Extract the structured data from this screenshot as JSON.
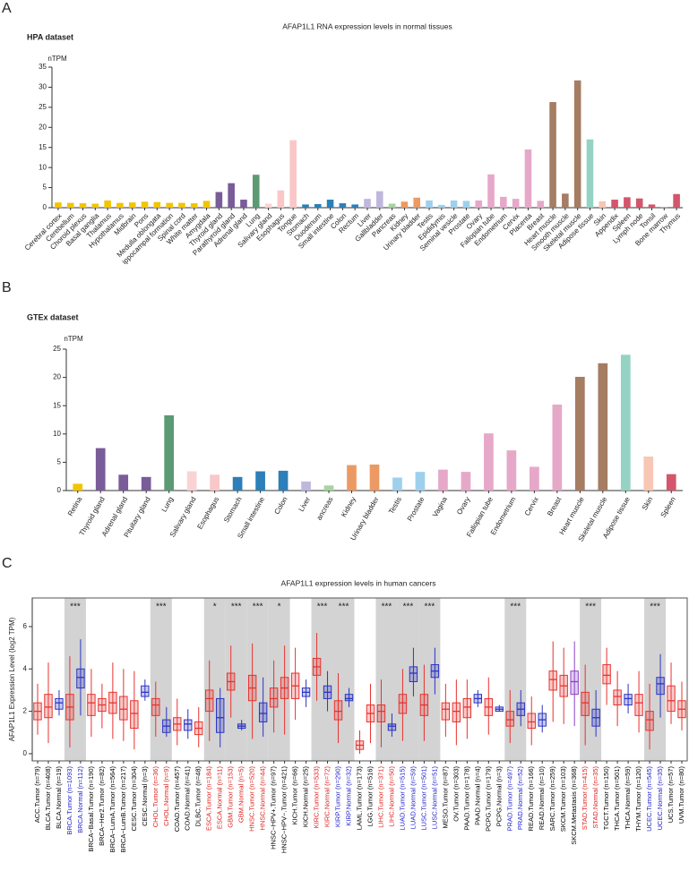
{
  "chart_data": [
    {
      "type": "bar",
      "panel": "A",
      "subtitle": "HPA dataset",
      "title": "AFAP1L1 RNA expression levels in normal tissues",
      "y_label": "nTPM",
      "categories": [
        "Cerebral cortex",
        "Cerebellum",
        "Choroid plexus",
        "Basal ganglia",
        "Thalamus",
        "Hypothalamus",
        "Midbrain",
        "Pons",
        "Medulla oblongata",
        "ippocampal formation",
        "Spinal cord",
        "White matter",
        "Amygdala",
        "Thyroid gland",
        "Parathyroid gland",
        "Adrenal gland",
        "Lung",
        "Salivary gland",
        "Esophagus",
        "Tongue",
        "Stomach",
        "Duodenum",
        "Small intestine",
        "Colon",
        "Rectum",
        "Liver",
        "Gallbladder",
        "Pancreas",
        "Kidney",
        "Urinary bladder",
        "Testis",
        "Epididymis",
        "Seminal vesicle",
        "Prostate",
        "Ovary",
        "Fallopian tube",
        "Endometrium",
        "Cervix",
        "Placenta",
        "Breast",
        "Heart muscle",
        "Smooth muscle",
        "Skeletal muscle",
        "Adipose tissue",
        "Skin",
        "Appendix",
        "Spleen",
        "Lymph node",
        "Tonsil",
        "Bone marrow",
        "Thymus"
      ],
      "values": [
        1.3,
        1.2,
        1.1,
        1.0,
        1.8,
        1.2,
        1.3,
        1.5,
        1.4,
        1.2,
        1.2,
        1.1,
        1.7,
        3.9,
        6.1,
        2.0,
        8.2,
        1.0,
        4.3,
        16.8,
        0.8,
        0.9,
        2.0,
        1.1,
        0.8,
        2.2,
        4.1,
        1.0,
        1.5,
        2.5,
        1.8,
        0.7,
        1.8,
        1.7,
        1.8,
        8.3,
        2.7,
        2.2,
        14.5,
        1.7,
        26.3,
        3.5,
        31.7,
        17.0,
        1.6,
        2.0,
        2.6,
        2.3,
        0.8,
        0.1,
        3.4
      ],
      "colors": [
        "#f2c500",
        "#f2c500",
        "#f2c500",
        "#f2c500",
        "#f2c500",
        "#f2c500",
        "#f2c500",
        "#f2c500",
        "#f2c500",
        "#f2c500",
        "#f2c500",
        "#f2c500",
        "#f2c500",
        "#7a5c99",
        "#7a5c99",
        "#7a5c99",
        "#5b9a72",
        "#f9d3d3",
        "#f9c7c7",
        "#f9c7c7",
        "#2c7fb8",
        "#2c7fb8",
        "#2c7fb8",
        "#2c7fb8",
        "#2c7fb8",
        "#c0b8dc",
        "#c0b8dc",
        "#a6d49f",
        "#ec9a63",
        "#ec9a63",
        "#9ed0ee",
        "#9ed0ee",
        "#9ed0ee",
        "#9ed0ee",
        "#e6a8c9",
        "#e6a8c9",
        "#e6a8c9",
        "#e6a8c9",
        "#e6a8c9",
        "#e6a8c9",
        "#a57d62",
        "#a57d62",
        "#a57d62",
        "#94d3c3",
        "#f7c6b4",
        "#d4566c",
        "#d4566c",
        "#d4566c",
        "#d4566c",
        "#d4566c",
        "#d4566c"
      ],
      "ylim": [
        0,
        35
      ],
      "yticks": [
        0,
        5,
        10,
        15,
        20,
        25,
        30,
        35
      ]
    },
    {
      "type": "bar",
      "panel": "B",
      "subtitle": "GTEx dataset",
      "y_label": "nTPM",
      "categories": [
        "Retina",
        "Thyroid gland",
        "Adrenal gland",
        "Pituitary gland",
        "Lung",
        "Salivary gland",
        "Esophagus",
        "Stomach",
        "Small intestine",
        "Colon",
        "Liver",
        "ancreas",
        "Kidney",
        "Urinary bladder",
        "Testis",
        "Prostate",
        "Vagina",
        "Ovary",
        "Fallopian tube",
        "Endometrium",
        "Cervix",
        "Breast",
        "Heart muscle",
        "Skeletal muscle",
        "Adipose tissue",
        "Skin",
        "Spleen"
      ],
      "values": [
        1.2,
        7.5,
        2.8,
        2.4,
        13.3,
        3.4,
        2.8,
        2.4,
        3.4,
        3.5,
        1.6,
        0.9,
        4.5,
        4.6,
        2.3,
        3.3,
        3.7,
        3.3,
        10.1,
        7.1,
        4.2,
        15.2,
        20.1,
        22.5,
        24.0,
        6.0,
        2.9
      ],
      "colors": [
        "#f2c500",
        "#7a5c99",
        "#7a5c99",
        "#7a5c99",
        "#5b9a72",
        "#f9d3d3",
        "#f9c7c7",
        "#2c7fb8",
        "#2c7fb8",
        "#2c7fb8",
        "#c0b8dc",
        "#a6d49f",
        "#ec9a63",
        "#ec9a63",
        "#9ed0ee",
        "#9ed0ee",
        "#e6a8c9",
        "#e6a8c9",
        "#e6a8c9",
        "#e6a8c9",
        "#e6a8c9",
        "#e6a8c9",
        "#a57d62",
        "#a57d62",
        "#94d3c3",
        "#f7c6b4",
        "#d4566c"
      ],
      "ylim": [
        0,
        25
      ],
      "yticks": [
        0,
        5,
        10,
        15,
        20,
        25
      ]
    },
    {
      "type": "box",
      "panel": "C",
      "title": "AFAP1L1 expression levels in human cancers",
      "y_label": "AFAP1L1 Expression Level (log2 TPM)",
      "categories": [
        "ACC.Tumor (n=79)",
        "BLCA.Tumor (n=408)",
        "BLCA.Normal (n=19)",
        "BRCA.Tumor (n=1093)",
        "BRCA.Normal (n=112)",
        "BRCA−Basal.Tumor (n=190)",
        "BRCA−Her2.Tumor (n=82)",
        "BRCA−LumA.Tumor (n=564)",
        "BRCA−LumB.Tumor (n=217)",
        "CESC.Tumor (n=304)",
        "CESC.Normal (n=3)",
        "CHOL.Tumor (n=36)",
        "CHOL.Normal (n=9)",
        "COAD.Tumor (n=457)",
        "COAD.Normal (n=41)",
        "DLBC.Tumor (n=48)",
        "ESCA.Tumor (n=184)",
        "ESCA.Normal (n=11)",
        "GBM.Tumor (n=153)",
        "GBM.Normal (n=5)",
        "HNSC.Tumor (n=520)",
        "HNSC.Normal (n=44)",
        "HNSC−HPV+.Tumor (n=97)",
        "HNSC−HPV−.Tumor (n=421)",
        "KICH.Tumor (n=66)",
        "KICH.Normal (n=25)",
        "KIRC.Tumor (n=533)",
        "KIRC.Normal (n=72)",
        "KIRP.Tumor (n=290)",
        "KIRP.Normal (n=32)",
        "LAML.Tumor (n=173)",
        "LGG.Tumor (n=516)",
        "LIHC.Tumor (n=371)",
        "LIHC.Normal (n=50)",
        "LUAD.Tumor (n=515)",
        "LUAD.Normal (n=59)",
        "LUSC.Tumor (n=501)",
        "LUSC.Normal (n=51)",
        "MESO.Tumor (n=87)",
        "OV.Tumor (n=303)",
        "PAAD.Tumor (n=178)",
        "PAAD.Normal (n=4)",
        "PCPG.Tumor (n=179)",
        "PCPG.Normal (n=3)",
        "PRAD.Tumor (n=497)",
        "PRAD.Normal (n=52)",
        "READ.Tumor (n=166)",
        "READ.Normal (n=10)",
        "SARC.Tumor (n=259)",
        "SKCM.Tumor (n=103)",
        "SKCM.Metastasis (n=368)",
        "STAD.Tumor (n=415)",
        "STAD.Normal (n=35)",
        "TGCT.Tumor (n=150)",
        "THCA.Tumor (n=501)",
        "THCA.Normal (n=59)",
        "THYM.Tumor (n=120)",
        "UCEC.Tumor (n=545)",
        "UCEC.Normal (n=35)",
        "UCS.Tumor (n=57)",
        "UVM.Tumor (n=80)"
      ],
      "values": [
        [
          0.9,
          1.6,
          2.0,
          2.4,
          3.3
        ],
        [
          0.5,
          1.7,
          2.2,
          2.8,
          4.3
        ],
        [
          1.8,
          2.1,
          2.4,
          2.6,
          3.0
        ],
        [
          0.3,
          1.6,
          2.2,
          2.8,
          4.6
        ],
        [
          1.8,
          3.1,
          3.6,
          4.0,
          5.4
        ],
        [
          0.8,
          1.8,
          2.4,
          2.8,
          4.0
        ],
        [
          1.2,
          2.0,
          2.3,
          2.6,
          3.3
        ],
        [
          0.7,
          1.9,
          2.4,
          2.9,
          4.3
        ],
        [
          0.6,
          1.6,
          2.1,
          2.7,
          4.0
        ],
        [
          0.2,
          1.2,
          1.9,
          2.5,
          3.9
        ],
        [
          2.5,
          2.7,
          2.9,
          3.2,
          3.5
        ],
        [
          0.8,
          1.8,
          2.3,
          2.6,
          3.4
        ],
        [
          0.8,
          1.0,
          1.3,
          1.6,
          2.2
        ],
        [
          0.4,
          1.1,
          1.4,
          1.7,
          2.6
        ],
        [
          0.7,
          1.1,
          1.4,
          1.6,
          2.1
        ],
        [
          0.3,
          0.9,
          1.2,
          1.5,
          2.2
        ],
        [
          0.6,
          2.0,
          2.6,
          3.0,
          4.4
        ],
        [
          0.3,
          1.0,
          1.7,
          2.6,
          3.1
        ],
        [
          1.7,
          3.0,
          3.4,
          3.8,
          5.1
        ],
        [
          1.1,
          1.2,
          1.3,
          1.4,
          1.6
        ],
        [
          0.7,
          2.5,
          3.1,
          3.7,
          5.2
        ],
        [
          0.8,
          1.5,
          1.9,
          2.4,
          3.6
        ],
        [
          1.0,
          2.2,
          2.6,
          3.1,
          4.4
        ],
        [
          0.9,
          2.6,
          3.1,
          3.6,
          5.1
        ],
        [
          1.6,
          2.6,
          3.2,
          3.8,
          5.0
        ],
        [
          2.2,
          2.7,
          2.9,
          3.1,
          3.5
        ],
        [
          2.5,
          3.7,
          4.1,
          4.5,
          5.7
        ],
        [
          2.0,
          2.6,
          2.9,
          3.2,
          3.9
        ],
        [
          0.5,
          1.6,
          2.0,
          2.5,
          3.8
        ],
        [
          2.2,
          2.5,
          2.6,
          2.8,
          3.1
        ],
        [
          0,
          0.2,
          0.4,
          0.6,
          1.1
        ],
        [
          0.5,
          1.5,
          1.9,
          2.3,
          3.3
        ],
        [
          0.3,
          1.5,
          2.0,
          2.3,
          3.5
        ],
        [
          0.8,
          1.1,
          1.3,
          1.4,
          1.9
        ],
        [
          0.6,
          1.9,
          2.4,
          2.8,
          4.0
        ],
        [
          2.7,
          3.4,
          3.8,
          4.1,
          5.0
        ],
        [
          0.6,
          1.8,
          2.3,
          2.8,
          4.2
        ],
        [
          2.8,
          3.6,
          3.9,
          4.2,
          5.0
        ],
        [
          0.8,
          1.6,
          2.1,
          2.4,
          3.3
        ],
        [
          0.4,
          1.5,
          2.0,
          2.4,
          3.5
        ],
        [
          0.7,
          1.7,
          2.2,
          2.6,
          3.5
        ],
        [
          2.2,
          2.4,
          2.6,
          2.8,
          3.0
        ],
        [
          0.9,
          1.8,
          2.2,
          2.6,
          3.6
        ],
        [
          2.0,
          2.0,
          2.1,
          2.2,
          2.3
        ],
        [
          0.5,
          1.3,
          1.6,
          2.0,
          3.0
        ],
        [
          1.3,
          1.8,
          2.1,
          2.4,
          3.0
        ],
        [
          0.4,
          1.2,
          1.5,
          1.9,
          2.7
        ],
        [
          1.0,
          1.3,
          1.6,
          1.9,
          2.3
        ],
        [
          1.5,
          3.0,
          3.5,
          3.9,
          5.3
        ],
        [
          1.4,
          2.7,
          3.2,
          3.7,
          5.0
        ],
        [
          1.3,
          2.8,
          3.4,
          3.9,
          5.3
        ],
        [
          0.4,
          1.8,
          2.4,
          2.9,
          4.2
        ],
        [
          0.8,
          1.3,
          1.7,
          2.1,
          3.0
        ],
        [
          2.3,
          3.3,
          3.7,
          4.2,
          5.0
        ],
        [
          1.3,
          2.3,
          2.7,
          3.0,
          3.9
        ],
        [
          1.9,
          2.3,
          2.6,
          2.8,
          3.3
        ],
        [
          1.0,
          1.8,
          2.4,
          2.8,
          3.9
        ],
        [
          0.2,
          1.1,
          1.6,
          2.0,
          3.3
        ],
        [
          1.7,
          2.8,
          3.3,
          3.6,
          4.7
        ],
        [
          1.4,
          2.0,
          2.5,
          3.2,
          4.3
        ],
        [
          1.1,
          1.7,
          2.1,
          2.5,
          3.4
        ]
      ],
      "label_colors": [
        "#000",
        "#000",
        "#000",
        "#2222cc",
        "#2222cc",
        "#000",
        "#000",
        "#000",
        "#000",
        "#000",
        "#000",
        "#e0201c",
        "#e0201c",
        "#000",
        "#000",
        "#000",
        "#e0201c",
        "#e0201c",
        "#e0201c",
        "#e0201c",
        "#e0201c",
        "#e0201c",
        "#000",
        "#000",
        "#000",
        "#000",
        "#e0201c",
        "#e0201c",
        "#2222cc",
        "#2222cc",
        "#000",
        "#000",
        "#e0201c",
        "#e0201c",
        "#2222cc",
        "#2222cc",
        "#2222cc",
        "#2222cc",
        "#000",
        "#000",
        "#000",
        "#000",
        "#000",
        "#000",
        "#2222cc",
        "#2222cc",
        "#000",
        "#000",
        "#000",
        "#000",
        "#000",
        "#e0201c",
        "#e0201c",
        "#000",
        "#000",
        "#000",
        "#000",
        "#2222cc",
        "#2222cc",
        "#000",
        "#000"
      ],
      "box_colors": {
        "Tumor": "#e8322e",
        "Normal": "#2b34c4",
        "Metastasis": "#8b3fc6"
      },
      "significance": [
        null,
        null,
        null,
        "***",
        null,
        null,
        null,
        null,
        null,
        null,
        null,
        "***",
        null,
        null,
        null,
        null,
        "*",
        null,
        "***",
        null,
        "***",
        null,
        "*",
        null,
        null,
        null,
        "***",
        null,
        "***",
        null,
        null,
        null,
        "***",
        null,
        "***",
        null,
        "***",
        null,
        null,
        null,
        null,
        null,
        null,
        null,
        "***",
        null,
        null,
        null,
        null,
        null,
        null,
        "***",
        null,
        null,
        null,
        null,
        null,
        "***",
        null,
        null,
        null
      ],
      "ylim": [
        -0.34,
        7.35
      ],
      "yticks": [
        0,
        2,
        4,
        6
      ]
    }
  ]
}
